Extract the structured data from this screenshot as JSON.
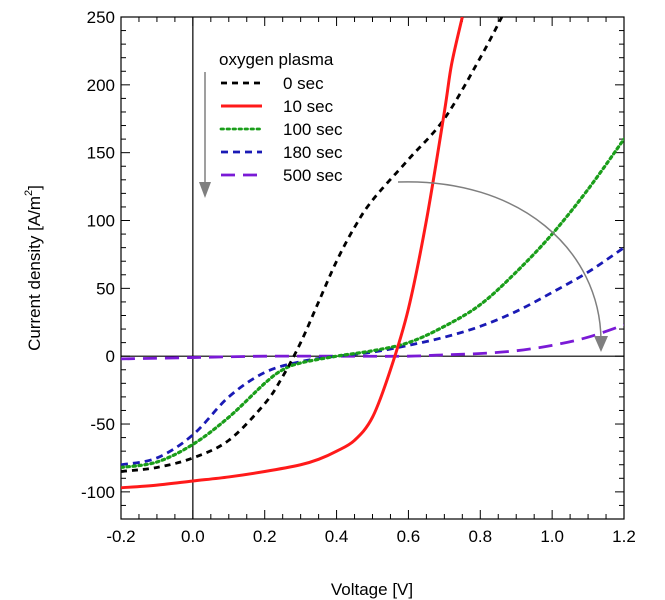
{
  "chart_data": {
    "type": "line",
    "xlabel": "Voltage [V]",
    "ylabel_main": "Current density [A/m",
    "ylabel_sup": "2",
    "ylabel_end": "]",
    "xlim": [
      -0.2,
      1.2
    ],
    "ylim": [
      -120,
      250
    ],
    "x_ticks": [
      -0.2,
      0.0,
      0.2,
      0.4,
      0.6,
      0.8,
      1.0,
      1.2
    ],
    "x_tick_labels": [
      "-0.2",
      "0.0",
      "0.2",
      "0.4",
      "0.6",
      "0.8",
      "1.0",
      "1.2"
    ],
    "y_ticks": [
      -100,
      -50,
      0,
      50,
      100,
      150,
      200,
      250
    ],
    "y_tick_labels": [
      "-100",
      "-50",
      "0",
      "50",
      "100",
      "150",
      "200",
      "250"
    ],
    "grid": false,
    "legend_position": "top-left",
    "legend_title": "oxygen plasma",
    "series": [
      {
        "name": "0 sec",
        "color": "#000000",
        "dash": "short-dash",
        "x": [
          -0.2,
          -0.1,
          0.0,
          0.1,
          0.2,
          0.25,
          0.3,
          0.35,
          0.4,
          0.45,
          0.5,
          0.6,
          0.7,
          0.8,
          0.86
        ],
        "y": [
          -85,
          -82,
          -75,
          -62,
          -35,
          -15,
          10,
          40,
          70,
          95,
          115,
          145,
          175,
          220,
          250
        ]
      },
      {
        "name": "10 sec",
        "color": "#ff1a1a",
        "dash": "solid",
        "x": [
          -0.2,
          -0.1,
          0.0,
          0.1,
          0.2,
          0.3,
          0.35,
          0.4,
          0.45,
          0.5,
          0.55,
          0.6,
          0.65,
          0.7,
          0.72,
          0.75
        ],
        "y": [
          -97,
          -95,
          -92,
          -89,
          -85,
          -80,
          -76,
          -70,
          -62,
          -45,
          -10,
          35,
          100,
          180,
          215,
          250
        ]
      },
      {
        "name": "100 sec",
        "color": "#1a9e1a",
        "dash": "dotted",
        "x": [
          -0.2,
          -0.1,
          0.0,
          0.1,
          0.2,
          0.25,
          0.3,
          0.4,
          0.5,
          0.6,
          0.7,
          0.8,
          0.9,
          1.0,
          1.1,
          1.2
        ],
        "y": [
          -82,
          -78,
          -65,
          -45,
          -20,
          -10,
          -5,
          0,
          4,
          10,
          22,
          38,
          62,
          90,
          123,
          160
        ]
      },
      {
        "name": "180 sec",
        "color": "#1a1ab5",
        "dash": "dash",
        "x": [
          -0.2,
          -0.1,
          0.0,
          0.1,
          0.2,
          0.3,
          0.4,
          0.5,
          0.6,
          0.7,
          0.8,
          0.9,
          1.0,
          1.1,
          1.2
        ],
        "y": [
          -80,
          -75,
          -58,
          -30,
          -12,
          -4,
          0,
          3,
          8,
          14,
          22,
          33,
          47,
          62,
          80
        ]
      },
      {
        "name": "500 sec",
        "color": "#7a1ad6",
        "dash": "long-dash",
        "x": [
          -0.2,
          0.0,
          0.2,
          0.4,
          0.6,
          0.7,
          0.8,
          0.9,
          1.0,
          1.1,
          1.2
        ],
        "y": [
          -2,
          -1,
          0,
          0,
          0,
          1,
          2,
          4,
          8,
          14,
          23
        ]
      }
    ]
  }
}
